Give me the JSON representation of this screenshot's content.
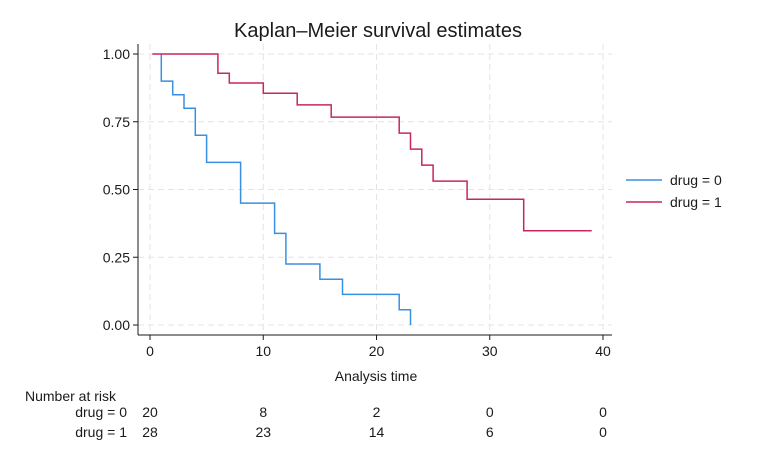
{
  "chart_data": {
    "type": "line",
    "step": true,
    "title": "Kaplan–Meier survival estimates",
    "xlabel": "Analysis time",
    "ylabel": "",
    "xlim": [
      0,
      40
    ],
    "ylim": [
      0,
      1
    ],
    "xticks": [
      0,
      10,
      20,
      30,
      40
    ],
    "yticks": [
      0,
      0.25,
      0.5,
      0.75,
      1.0
    ],
    "xtick_labels": [
      "0",
      "10",
      "20",
      "30",
      "40"
    ],
    "ytick_labels": [
      "0.00",
      "0.25",
      "0.50",
      "0.75",
      "1.00"
    ],
    "grid": true,
    "legend_position": "right",
    "series": [
      {
        "name": "drug = 0",
        "color": "#3a8fe0",
        "points": [
          [
            1,
            1.0
          ],
          [
            1,
            0.9
          ],
          [
            2,
            0.9
          ],
          [
            2,
            0.85
          ],
          [
            3,
            0.85
          ],
          [
            3,
            0.8
          ],
          [
            4,
            0.8
          ],
          [
            4,
            0.7
          ],
          [
            5,
            0.7
          ],
          [
            5,
            0.6
          ],
          [
            8,
            0.6
          ],
          [
            8,
            0.45
          ],
          [
            11,
            0.45
          ],
          [
            11,
            0.338
          ],
          [
            12,
            0.338
          ],
          [
            12,
            0.225
          ],
          [
            15,
            0.225
          ],
          [
            15,
            0.169
          ],
          [
            17,
            0.169
          ],
          [
            17,
            0.113
          ],
          [
            22,
            0.113
          ],
          [
            22,
            0.056
          ],
          [
            23,
            0.056
          ],
          [
            23,
            0.0
          ]
        ]
      },
      {
        "name": "drug = 1",
        "color": "#c8275e",
        "points": [
          [
            0.2,
            1.0
          ],
          [
            6,
            1.0
          ],
          [
            6,
            0.929
          ],
          [
            7,
            0.929
          ],
          [
            7,
            0.893
          ],
          [
            10,
            0.893
          ],
          [
            10,
            0.855
          ],
          [
            13,
            0.855
          ],
          [
            13,
            0.812
          ],
          [
            16,
            0.812
          ],
          [
            16,
            0.767
          ],
          [
            22,
            0.767
          ],
          [
            22,
            0.708
          ],
          [
            23,
            0.708
          ],
          [
            23,
            0.649
          ],
          [
            24,
            0.649
          ],
          [
            24,
            0.59
          ],
          [
            25,
            0.59
          ],
          [
            25,
            0.531
          ],
          [
            28,
            0.531
          ],
          [
            28,
            0.464
          ],
          [
            33,
            0.464
          ],
          [
            33,
            0.348
          ],
          [
            39,
            0.348
          ]
        ]
      }
    ],
    "risk_table": {
      "header": "Number at risk",
      "times": [
        0,
        10,
        20,
        30,
        40
      ],
      "rows": [
        {
          "label": "drug = 0",
          "counts": [
            "20",
            "8",
            "2",
            "0",
            "0"
          ]
        },
        {
          "label": "drug = 1",
          "counts": [
            "28",
            "23",
            "14",
            "6",
            "0"
          ]
        }
      ]
    }
  }
}
